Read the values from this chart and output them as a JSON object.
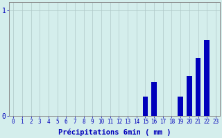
{
  "title": "",
  "xlabel": "Précipitations 6min ( mm )",
  "categories": [
    0,
    1,
    2,
    3,
    4,
    5,
    6,
    7,
    8,
    9,
    10,
    11,
    12,
    13,
    14,
    15,
    16,
    17,
    18,
    19,
    20,
    21,
    22,
    23
  ],
  "values": [
    0,
    0,
    0,
    0,
    0,
    0,
    0,
    0,
    0,
    0,
    0,
    0,
    0,
    0,
    0,
    0.18,
    0.32,
    0,
    0,
    0.18,
    0.38,
    0.55,
    0.72,
    0
  ],
  "bar_color": "#0000bb",
  "background_color": "#d4eeec",
  "grid_color": "#b0c8c8",
  "yticks": [
    0,
    1
  ],
  "ylim": [
    0,
    1.08
  ],
  "xlim": [
    -0.5,
    23.5
  ],
  "tick_color": "#0000bb",
  "axis_color": "#888888",
  "xlabel_fontsize": 7.5,
  "tick_fontsize": 5.5,
  "bar_width": 0.6
}
